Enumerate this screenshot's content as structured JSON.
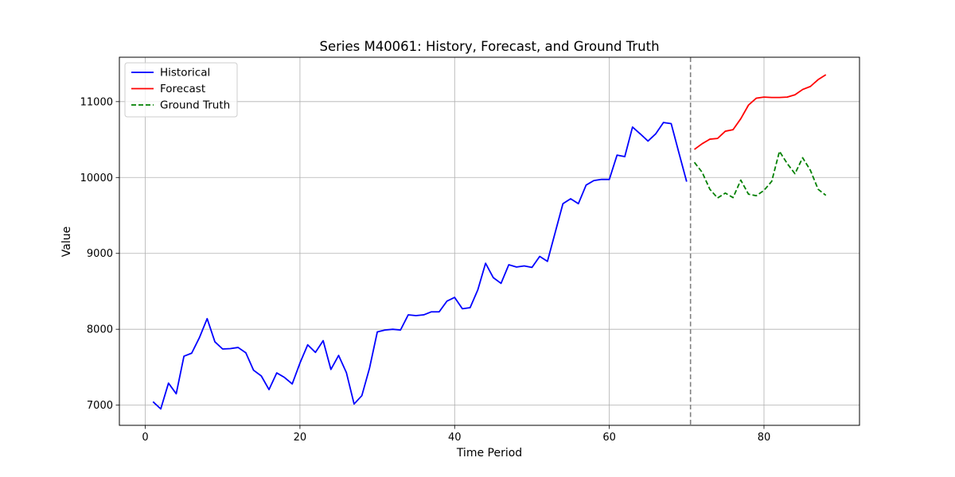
{
  "chart_data": {
    "type": "line",
    "title": "Series M40061: History, Forecast, and Ground Truth",
    "xlabel": "Time Period",
    "ylabel": "Value",
    "xlim": [
      -3.35,
      92.35
    ],
    "ylim": [
      6734,
      11585
    ],
    "xticks": [
      0,
      20,
      40,
      60,
      80
    ],
    "yticks": [
      7000,
      8000,
      9000,
      10000,
      11000
    ],
    "grid": true,
    "legend_position": "top-left",
    "forecast_start_marker": 70.5,
    "series": [
      {
        "name": "Historical",
        "color": "#0000ff",
        "style": "solid",
        "x": [
          1,
          2,
          3,
          4,
          5,
          6,
          7,
          8,
          9,
          10,
          11,
          12,
          13,
          14,
          15,
          16,
          17,
          18,
          19,
          20,
          21,
          22,
          23,
          24,
          25,
          26,
          27,
          28,
          29,
          30,
          31,
          32,
          33,
          34,
          35,
          36,
          37,
          38,
          39,
          40,
          41,
          42,
          43,
          44,
          45,
          46,
          47,
          48,
          49,
          50,
          51,
          52,
          53,
          54,
          55,
          56,
          57,
          58,
          59,
          60,
          61,
          62,
          63,
          64,
          65,
          66,
          67,
          68,
          69,
          70
        ],
        "y": [
          7045,
          6950,
          7290,
          7150,
          7645,
          7685,
          7890,
          8140,
          7835,
          7740,
          7745,
          7760,
          7690,
          7460,
          7385,
          7205,
          7425,
          7365,
          7280,
          7555,
          7795,
          7695,
          7850,
          7470,
          7655,
          7430,
          7015,
          7125,
          7490,
          7965,
          7990,
          8000,
          7990,
          8190,
          8180,
          8190,
          8230,
          8230,
          8370,
          8420,
          8270,
          8285,
          8520,
          8870,
          8680,
          8605,
          8850,
          8820,
          8835,
          8815,
          8960,
          8895,
          9275,
          9655,
          9720,
          9655,
          9900,
          9960,
          9975,
          9975,
          10295,
          10275,
          10665,
          10575,
          10480,
          10575,
          10725,
          10710,
          10325,
          9945
        ]
      },
      {
        "name": "Forecast",
        "color": "#ff0000",
        "style": "solid",
        "x": [
          71,
          72,
          73,
          74,
          75,
          76,
          77,
          78,
          79,
          80,
          81,
          82,
          83,
          84,
          85,
          86,
          87,
          88
        ],
        "y": [
          10370,
          10445,
          10505,
          10515,
          10610,
          10630,
          10775,
          10955,
          11045,
          11060,
          11055,
          11055,
          11060,
          11090,
          11160,
          11200,
          11290,
          11355
        ]
      },
      {
        "name": "Ground Truth",
        "color": "#008000",
        "style": "dashed",
        "x": [
          71,
          72,
          73,
          74,
          75,
          76,
          77,
          78,
          79,
          80,
          81,
          82,
          83,
          84,
          85,
          86,
          87,
          88
        ],
        "y": [
          10200,
          10070,
          9845,
          9730,
          9795,
          9735,
          9965,
          9780,
          9760,
          9830,
          9950,
          10345,
          10185,
          10050,
          10260,
          10095,
          9845,
          9765
        ]
      }
    ]
  }
}
